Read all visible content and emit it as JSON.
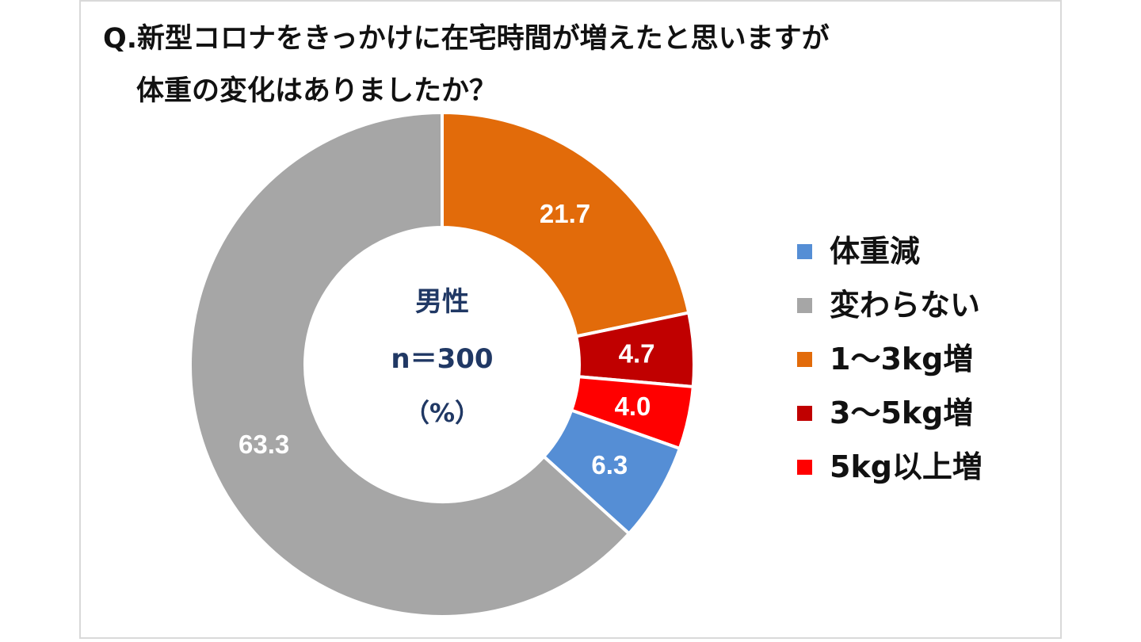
{
  "title": {
    "line1": "Q.新型コロナをきっかけに在宅時間が増えたと思いますが",
    "line2": "体重の変化はありましたか？"
  },
  "center": {
    "line1": "男性",
    "line2": "n＝300",
    "line3": "（%）",
    "color": "#203864"
  },
  "chart_data": {
    "type": "pie",
    "style": "donut",
    "slices": [
      {
        "label": "1～3kg増",
        "value": 21.7,
        "color": "#E26B0A",
        "data_label": "21.7"
      },
      {
        "label": "3～5kg増",
        "value": 4.7,
        "color": "#C00000",
        "data_label": "4.7"
      },
      {
        "label": "5kg以上増",
        "value": 4.0,
        "color": "#FF0000",
        "data_label": "4.0"
      },
      {
        "label": "体重減",
        "value": 6.3,
        "color": "#558ED5",
        "data_label": "6.3"
      },
      {
        "label": "変わらない",
        "value": 63.3,
        "color": "#A6A6A6",
        "data_label": "63.3"
      }
    ],
    "start_angle_deg": 0,
    "direction": "clockwise",
    "legend_position": "right",
    "legend": [
      {
        "label": "体重減",
        "color": "#558ED5"
      },
      {
        "label": "変わらない",
        "color": "#A6A6A6"
      },
      {
        "label": "1～3kg増",
        "color": "#E26B0A"
      },
      {
        "label": "3～5kg増",
        "color": "#C00000"
      },
      {
        "label": "5kg以上増",
        "color": "#FF0000"
      }
    ]
  }
}
